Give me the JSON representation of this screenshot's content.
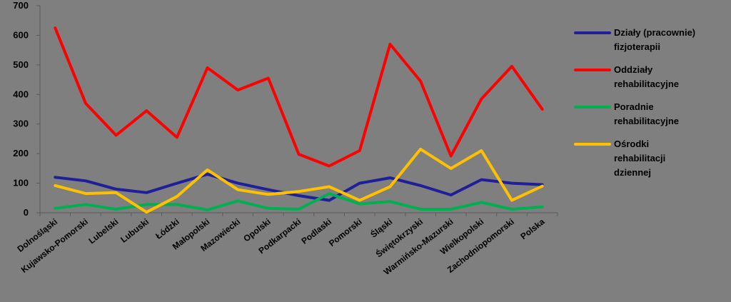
{
  "chart_data": {
    "type": "line",
    "title": "",
    "xlabel": "",
    "ylabel": "",
    "ylim": [
      0,
      700
    ],
    "yticks": [
      0,
      100,
      200,
      300,
      400,
      500,
      600,
      700
    ],
    "grid": false,
    "legend_position": "right",
    "categories": [
      "Dolnośląski",
      "Kujawsko-Pomorski",
      "Lubelski",
      "Lubuski",
      "Łódzki",
      "Małopolski",
      "Mazowiecki",
      "Opolski",
      "Podkarpacki",
      "Podlaski",
      "Pomorski",
      "Śląski",
      "Świętokrzyski",
      "Warmińsko-Mazurski",
      "Wielkopolski",
      "Zachodniopomorski",
      "Polska"
    ],
    "series": [
      {
        "name": "Działy (pracownie) fizjoterapii",
        "color": "#1f1f9a",
        "values": [
          120,
          108,
          80,
          68,
          100,
          130,
          100,
          78,
          58,
          42,
          100,
          118,
          92,
          60,
          112,
          100,
          95
        ]
      },
      {
        "name": "Oddziały rehabilitacyjne",
        "color": "#ff0000",
        "values": [
          625,
          370,
          262,
          345,
          255,
          490,
          415,
          455,
          198,
          158,
          210,
          570,
          445,
          192,
          385,
          495,
          350
        ]
      },
      {
        "name": "Poradnie rehabilitacyjne",
        "color": "#00b050",
        "values": [
          15,
          28,
          12,
          28,
          28,
          10,
          40,
          15,
          12,
          65,
          30,
          38,
          12,
          12,
          35,
          12,
          20
        ]
      },
      {
        "name": "Ośrodki rehabilitacji dziennej",
        "color": "#ffc000",
        "values": [
          92,
          65,
          68,
          2,
          55,
          145,
          78,
          62,
          72,
          88,
          42,
          88,
          215,
          150,
          210,
          42,
          90
        ]
      }
    ]
  }
}
